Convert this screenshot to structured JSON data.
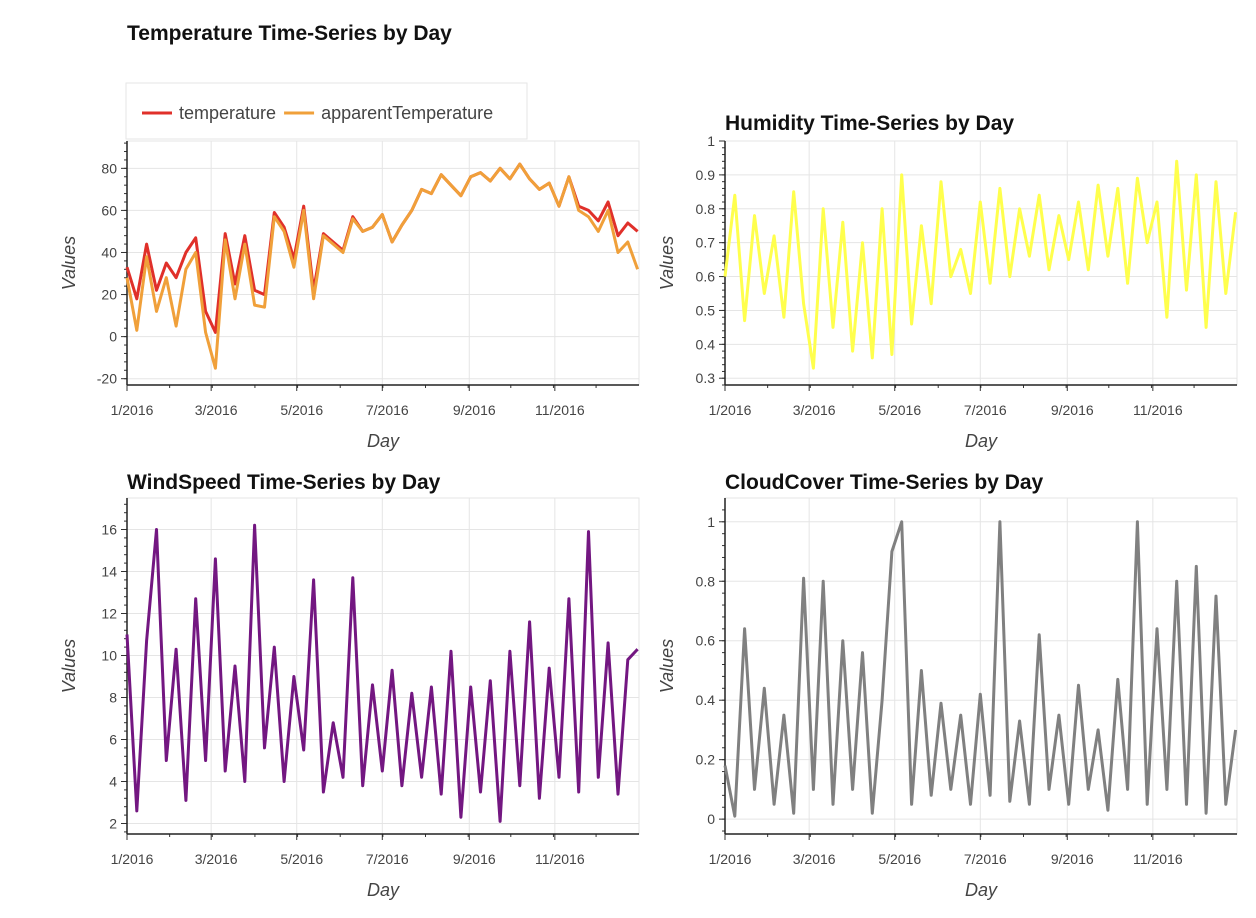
{
  "chart_data": [
    {
      "type": "line",
      "title": "Temperature Time-Series by Day",
      "xlabel": "Day",
      "ylabel": "Values",
      "xlim": [
        "2016-01-01",
        "2016-12-31"
      ],
      "ylim": [
        -23,
        93
      ],
      "yticks": [
        -20,
        0,
        20,
        40,
        60,
        80
      ],
      "x_ticks": [
        "1/2016",
        "3/2016",
        "5/2016",
        "7/2016",
        "9/2016",
        "11/2016"
      ],
      "grid": true,
      "legend": "top-left, above plot",
      "series": [
        {
          "name": "temperature",
          "color": "#e0302a",
          "x": [
            "2016-01-01",
            "2016-01-08",
            "2016-01-15",
            "2016-01-22",
            "2016-01-29",
            "2016-02-05",
            "2016-02-12",
            "2016-02-19",
            "2016-02-26",
            "2016-03-04",
            "2016-03-11",
            "2016-03-18",
            "2016-03-25",
            "2016-04-01",
            "2016-04-08",
            "2016-04-15",
            "2016-04-22",
            "2016-04-29",
            "2016-05-06",
            "2016-05-13",
            "2016-05-20",
            "2016-05-27",
            "2016-06-03",
            "2016-06-10",
            "2016-06-17",
            "2016-06-24",
            "2016-07-01",
            "2016-07-08",
            "2016-07-15",
            "2016-07-22",
            "2016-07-29",
            "2016-08-05",
            "2016-08-12",
            "2016-08-19",
            "2016-08-26",
            "2016-09-02",
            "2016-09-09",
            "2016-09-16",
            "2016-09-23",
            "2016-09-30",
            "2016-10-07",
            "2016-10-14",
            "2016-10-21",
            "2016-10-28",
            "2016-11-04",
            "2016-11-11",
            "2016-11-18",
            "2016-11-25",
            "2016-12-02",
            "2016-12-09",
            "2016-12-16",
            "2016-12-23",
            "2016-12-30"
          ],
          "values": [
            33,
            18,
            44,
            22,
            35,
            28,
            40,
            47,
            12,
            2,
            49,
            25,
            48,
            22,
            20,
            59,
            52,
            37,
            62,
            22,
            49,
            45,
            41,
            57,
            50,
            52,
            58,
            45,
            53,
            60,
            70,
            68,
            77,
            72,
            67,
            76,
            78,
            74,
            80,
            75,
            82,
            75,
            70,
            73,
            62,
            76,
            62,
            60,
            55,
            64,
            48,
            54,
            50
          ]
        },
        {
          "name": "apparentTemperature",
          "color": "#f0a03a",
          "x": [
            "2016-01-01",
            "2016-01-08",
            "2016-01-15",
            "2016-01-22",
            "2016-01-29",
            "2016-02-05",
            "2016-02-12",
            "2016-02-19",
            "2016-02-26",
            "2016-03-04",
            "2016-03-11",
            "2016-03-18",
            "2016-03-25",
            "2016-04-01",
            "2016-04-08",
            "2016-04-15",
            "2016-04-22",
            "2016-04-29",
            "2016-05-06",
            "2016-05-13",
            "2016-05-20",
            "2016-05-27",
            "2016-06-03",
            "2016-06-10",
            "2016-06-17",
            "2016-06-24",
            "2016-07-01",
            "2016-07-08",
            "2016-07-15",
            "2016-07-22",
            "2016-07-29",
            "2016-08-05",
            "2016-08-12",
            "2016-08-19",
            "2016-08-26",
            "2016-09-02",
            "2016-09-09",
            "2016-09-16",
            "2016-09-23",
            "2016-09-30",
            "2016-10-07",
            "2016-10-14",
            "2016-10-21",
            "2016-10-28",
            "2016-11-04",
            "2016-11-11",
            "2016-11-18",
            "2016-11-25",
            "2016-12-02",
            "2016-12-09",
            "2016-12-16",
            "2016-12-23",
            "2016-12-30"
          ],
          "values": [
            28,
            3,
            38,
            12,
            28,
            5,
            32,
            40,
            2,
            -15,
            46,
            18,
            44,
            15,
            14,
            57,
            50,
            33,
            60,
            18,
            48,
            44,
            40,
            56,
            50,
            52,
            58,
            45,
            53,
            60,
            70,
            68,
            77,
            72,
            67,
            76,
            78,
            74,
            80,
            75,
            82,
            75,
            70,
            73,
            62,
            76,
            60,
            57,
            50,
            60,
            40,
            45,
            32
          ]
        }
      ]
    },
    {
      "type": "line",
      "title": "Humidity Time-Series by Day",
      "xlabel": "Day",
      "ylabel": "Values",
      "xlim": [
        "2016-01-01",
        "2016-12-31"
      ],
      "ylim": [
        0.28,
        1.0
      ],
      "yticks": [
        0.3,
        0.4,
        0.5,
        0.6,
        0.7,
        0.8,
        0.9,
        1
      ],
      "x_ticks": [
        "1/2016",
        "3/2016",
        "5/2016",
        "7/2016",
        "9/2016",
        "11/2016"
      ],
      "grid": true,
      "series": [
        {
          "color": "#ffff4d",
          "x": [
            "2016-01-01",
            "2016-01-08",
            "2016-01-15",
            "2016-01-22",
            "2016-01-29",
            "2016-02-05",
            "2016-02-12",
            "2016-02-19",
            "2016-02-26",
            "2016-03-04",
            "2016-03-11",
            "2016-03-18",
            "2016-03-25",
            "2016-04-01",
            "2016-04-08",
            "2016-04-15",
            "2016-04-22",
            "2016-04-29",
            "2016-05-06",
            "2016-05-13",
            "2016-05-20",
            "2016-05-27",
            "2016-06-03",
            "2016-06-10",
            "2016-06-17",
            "2016-06-24",
            "2016-07-01",
            "2016-07-08",
            "2016-07-15",
            "2016-07-22",
            "2016-07-29",
            "2016-08-05",
            "2016-08-12",
            "2016-08-19",
            "2016-08-26",
            "2016-09-02",
            "2016-09-09",
            "2016-09-16",
            "2016-09-23",
            "2016-09-30",
            "2016-10-07",
            "2016-10-14",
            "2016-10-21",
            "2016-10-28",
            "2016-11-04",
            "2016-11-11",
            "2016-11-18",
            "2016-11-25",
            "2016-12-02",
            "2016-12-09",
            "2016-12-16",
            "2016-12-23",
            "2016-12-30"
          ],
          "values": [
            0.6,
            0.84,
            0.47,
            0.78,
            0.55,
            0.72,
            0.48,
            0.85,
            0.52,
            0.33,
            0.8,
            0.45,
            0.76,
            0.38,
            0.7,
            0.36,
            0.8,
            0.37,
            0.9,
            0.46,
            0.75,
            0.52,
            0.88,
            0.6,
            0.68,
            0.55,
            0.82,
            0.58,
            0.86,
            0.6,
            0.8,
            0.66,
            0.84,
            0.62,
            0.78,
            0.65,
            0.82,
            0.62,
            0.87,
            0.66,
            0.86,
            0.58,
            0.89,
            0.7,
            0.82,
            0.48,
            0.94,
            0.56,
            0.9,
            0.45,
            0.88,
            0.55,
            0.79
          ]
        }
      ]
    },
    {
      "type": "line",
      "title": "WindSpeed Time-Series by Day",
      "xlabel": "Day",
      "ylabel": "Values",
      "xlim": [
        "2016-01-01",
        "2016-12-31"
      ],
      "ylim": [
        1.5,
        17.5
      ],
      "yticks": [
        2,
        4,
        6,
        8,
        10,
        12,
        14,
        16
      ],
      "x_ticks": [
        "1/2016",
        "3/2016",
        "5/2016",
        "7/2016",
        "9/2016",
        "11/2016"
      ],
      "grid": true,
      "series": [
        {
          "color": "#731781",
          "x": [
            "2016-01-01",
            "2016-01-08",
            "2016-01-15",
            "2016-01-22",
            "2016-01-29",
            "2016-02-05",
            "2016-02-12",
            "2016-02-19",
            "2016-02-26",
            "2016-03-04",
            "2016-03-11",
            "2016-03-18",
            "2016-03-25",
            "2016-04-01",
            "2016-04-08",
            "2016-04-15",
            "2016-04-22",
            "2016-04-29",
            "2016-05-06",
            "2016-05-13",
            "2016-05-20",
            "2016-05-27",
            "2016-06-03",
            "2016-06-10",
            "2016-06-17",
            "2016-06-24",
            "2016-07-01",
            "2016-07-08",
            "2016-07-15",
            "2016-07-22",
            "2016-07-29",
            "2016-08-05",
            "2016-08-12",
            "2016-08-19",
            "2016-08-26",
            "2016-09-02",
            "2016-09-09",
            "2016-09-16",
            "2016-09-23",
            "2016-09-30",
            "2016-10-07",
            "2016-10-14",
            "2016-10-21",
            "2016-10-28",
            "2016-11-04",
            "2016-11-11",
            "2016-11-18",
            "2016-11-25",
            "2016-12-02",
            "2016-12-09",
            "2016-12-16",
            "2016-12-23",
            "2016-12-30"
          ],
          "values": [
            11,
            2.6,
            10.7,
            16,
            5,
            10.3,
            3.1,
            12.7,
            5,
            14.6,
            4.5,
            9.5,
            4,
            16.2,
            5.6,
            10.4,
            4,
            9,
            5.5,
            13.6,
            3.5,
            6.8,
            4.2,
            13.7,
            3.8,
            8.6,
            4.5,
            9.3,
            3.8,
            8.2,
            4.2,
            8.5,
            3.4,
            10.2,
            2.3,
            8.5,
            3.5,
            8.8,
            2.1,
            10.2,
            3.8,
            11.6,
            3.2,
            9.4,
            4.2,
            12.7,
            3.5,
            15.9,
            4.2,
            10.6,
            3.4,
            9.8,
            10.3
          ]
        }
      ]
    },
    {
      "type": "line",
      "title": "CloudCover Time-Series by Day",
      "xlabel": "Day",
      "ylabel": "Values",
      "xlim": [
        "2016-01-01",
        "2016-12-31"
      ],
      "ylim": [
        -0.05,
        1.08
      ],
      "yticks": [
        0,
        0.2,
        0.4,
        0.6,
        0.8,
        1
      ],
      "x_ticks": [
        "1/2016",
        "3/2016",
        "5/2016",
        "7/2016",
        "9/2016",
        "11/2016"
      ],
      "grid": true,
      "series": [
        {
          "color": "#808080",
          "x": [
            "2016-01-01",
            "2016-01-08",
            "2016-01-15",
            "2016-01-22",
            "2016-01-29",
            "2016-02-05",
            "2016-02-12",
            "2016-02-19",
            "2016-02-26",
            "2016-03-04",
            "2016-03-11",
            "2016-03-18",
            "2016-03-25",
            "2016-04-01",
            "2016-04-08",
            "2016-04-15",
            "2016-04-22",
            "2016-04-29",
            "2016-05-06",
            "2016-05-13",
            "2016-05-20",
            "2016-05-27",
            "2016-06-03",
            "2016-06-10",
            "2016-06-17",
            "2016-06-24",
            "2016-07-01",
            "2016-07-08",
            "2016-07-15",
            "2016-07-22",
            "2016-07-29",
            "2016-08-05",
            "2016-08-12",
            "2016-08-19",
            "2016-08-26",
            "2016-09-02",
            "2016-09-09",
            "2016-09-16",
            "2016-09-23",
            "2016-09-30",
            "2016-10-07",
            "2016-10-14",
            "2016-10-21",
            "2016-10-28",
            "2016-11-04",
            "2016-11-11",
            "2016-11-18",
            "2016-11-25",
            "2016-12-02",
            "2016-12-09",
            "2016-12-16",
            "2016-12-23",
            "2016-12-30"
          ],
          "values": [
            0.18,
            0.01,
            0.64,
            0.1,
            0.44,
            0.05,
            0.35,
            0.02,
            0.81,
            0.1,
            0.8,
            0.05,
            0.6,
            0.1,
            0.56,
            0.02,
            0.4,
            0.9,
            1.0,
            0.05,
            0.5,
            0.08,
            0.39,
            0.1,
            0.35,
            0.05,
            0.42,
            0.08,
            1.0,
            0.06,
            0.33,
            0.05,
            0.62,
            0.1,
            0.35,
            0.05,
            0.45,
            0.1,
            0.3,
            0.03,
            0.47,
            0.1,
            1.0,
            0.05,
            0.64,
            0.1,
            0.8,
            0.05,
            0.85,
            0.02,
            0.75,
            0.05,
            0.3
          ]
        }
      ]
    }
  ]
}
